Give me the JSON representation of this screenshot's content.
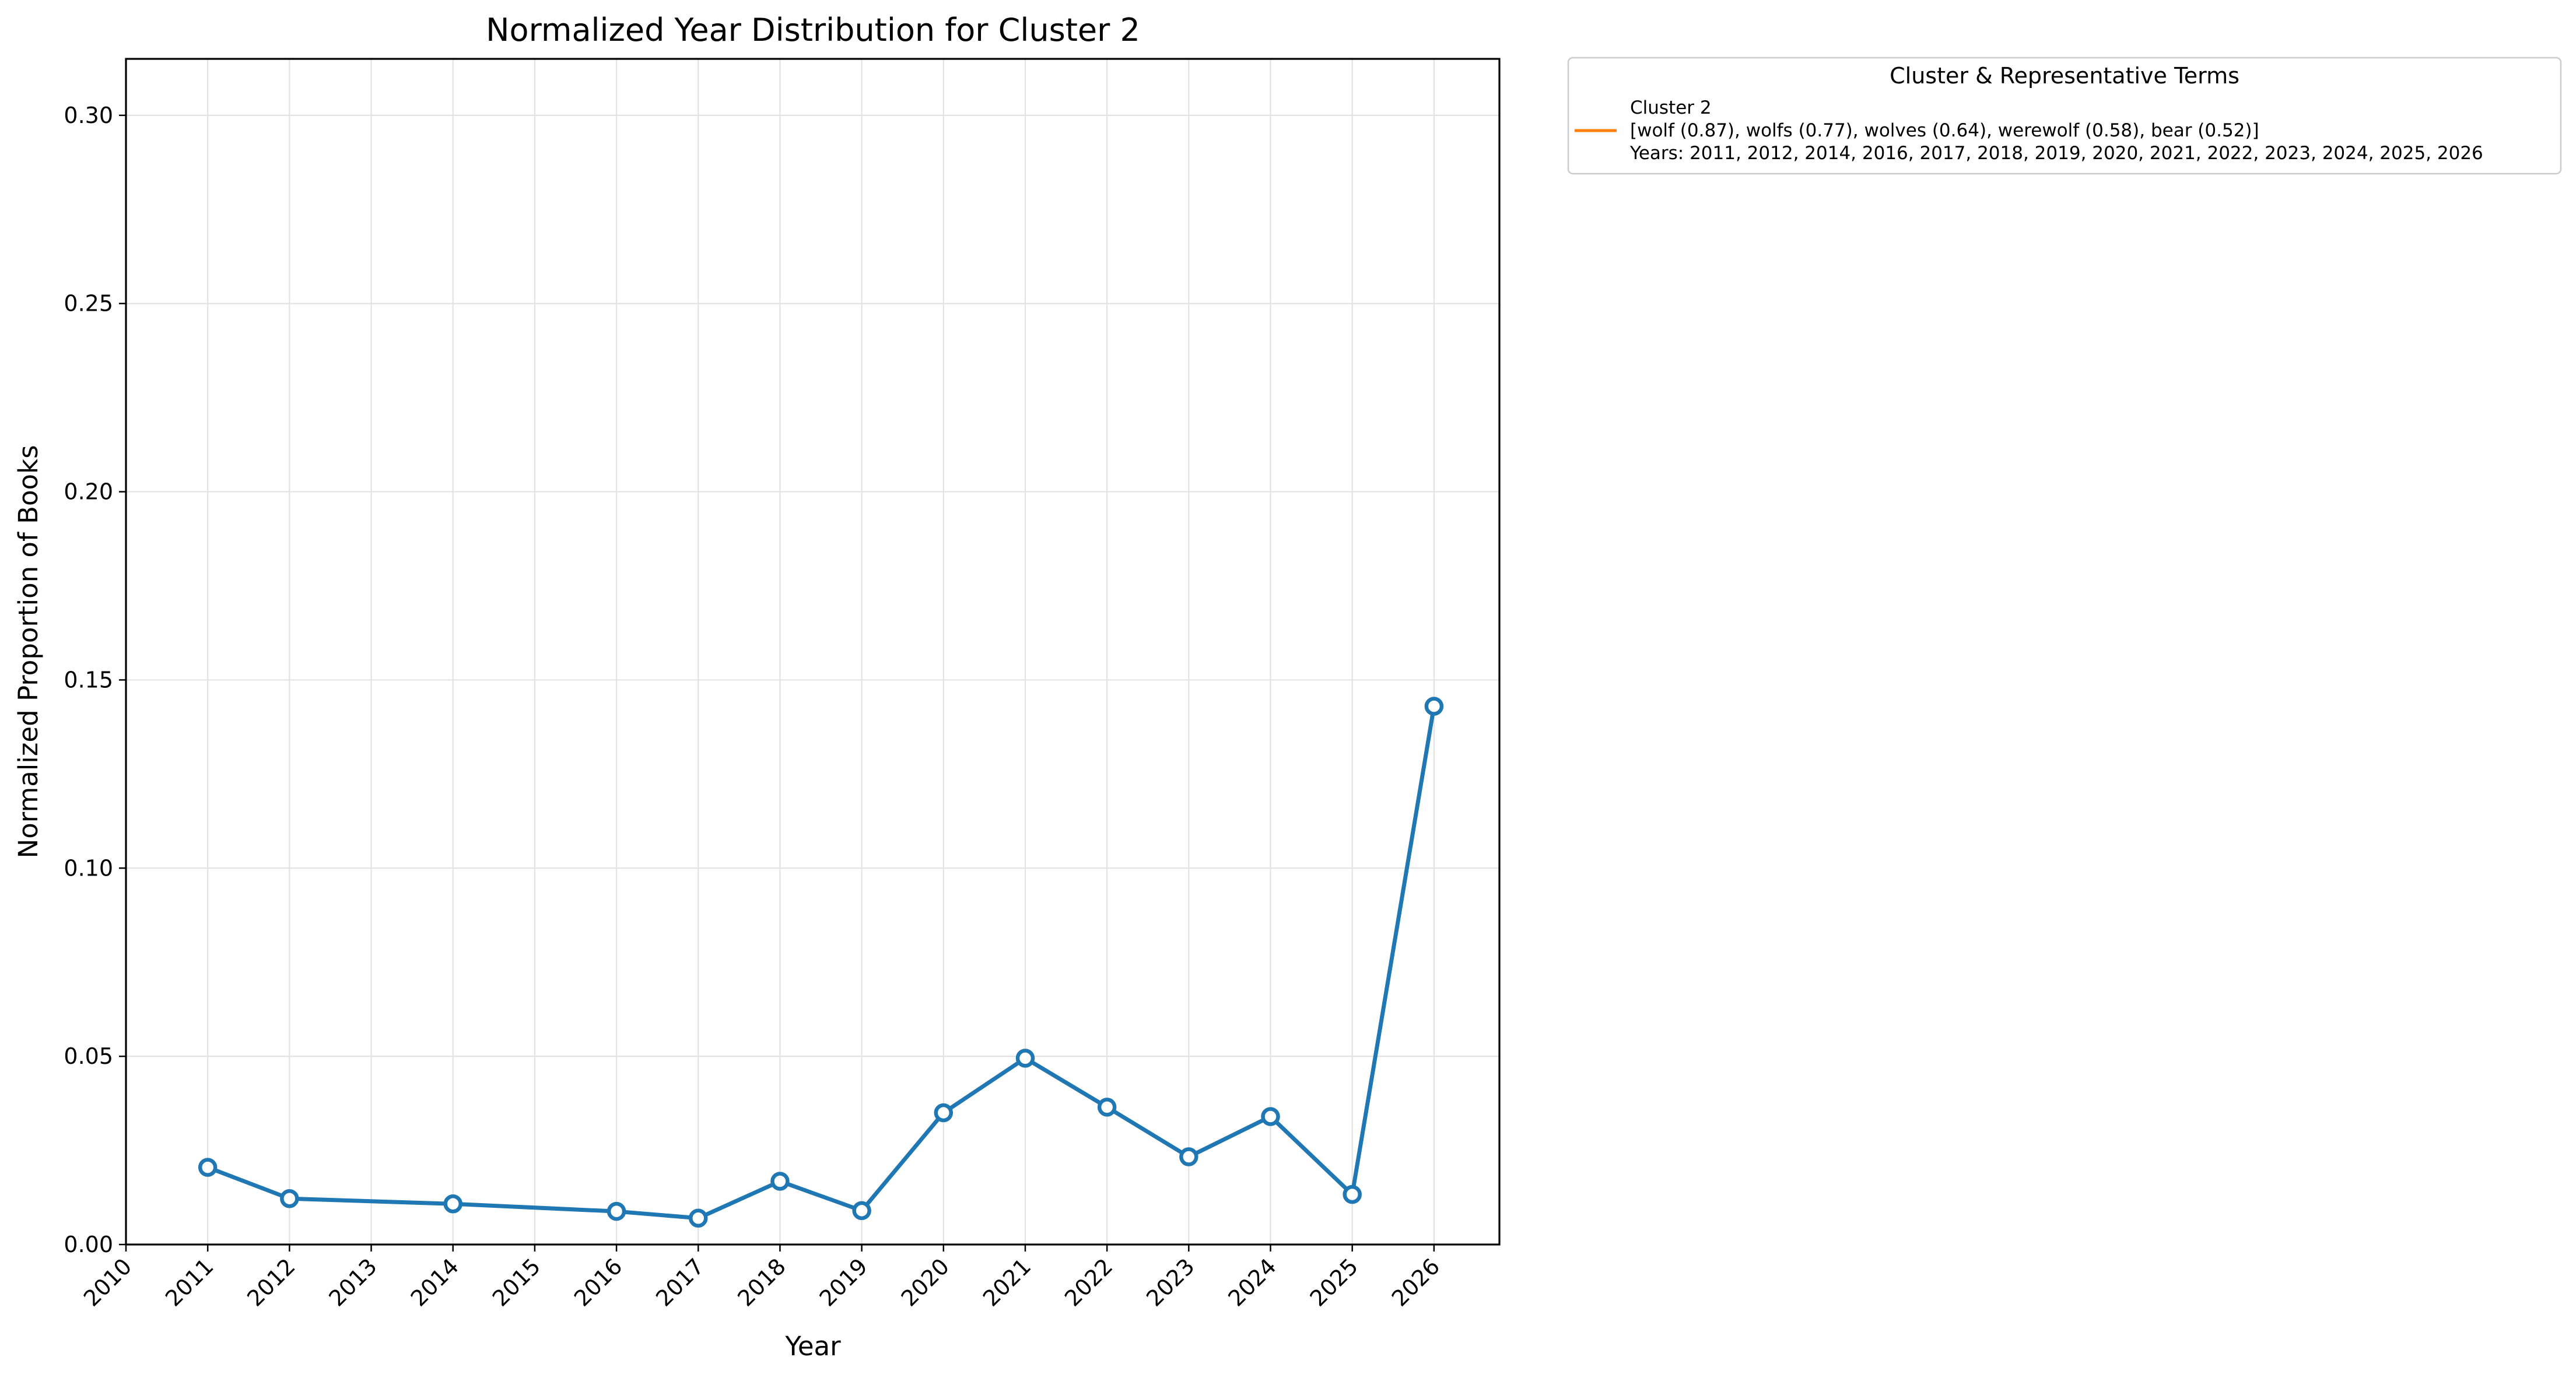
{
  "chart_data": {
    "type": "line",
    "title": "Normalized Year Distribution for Cluster 2",
    "xlabel": "Year",
    "ylabel": "Normalized Proportion of Books",
    "xlim": [
      2010,
      2026.8
    ],
    "ylim": [
      0,
      0.315
    ],
    "x_ticks": [
      "2010",
      "2011",
      "2012",
      "2013",
      "2014",
      "2015",
      "2016",
      "2017",
      "2018",
      "2019",
      "2020",
      "2021",
      "2022",
      "2023",
      "2024",
      "2025",
      "2026"
    ],
    "y_ticks": [
      "0.00",
      "0.05",
      "0.10",
      "0.15",
      "0.20",
      "0.25",
      "0.30"
    ],
    "grid": true,
    "series": [
      {
        "color": "#1f77b4",
        "x": [
          2011,
          2012,
          2014,
          2016,
          2017,
          2018,
          2019,
          2020,
          2021,
          2022,
          2023,
          2024,
          2025,
          2026
        ],
        "y": [
          0.0205,
          0.0122,
          0.0108,
          0.0088,
          0.007,
          0.0168,
          0.009,
          0.035,
          0.0495,
          0.0365,
          0.0233,
          0.034,
          0.0133,
          0.143
        ]
      }
    ],
    "legend": {
      "placement": "outside-top-right",
      "title": "Cluster & Representative Terms",
      "line_color": "#ff7f0e",
      "entry_lines": [
        "Cluster 2",
        "[wolf (0.87), wolfs (0.77), wolves (0.64), werewolf (0.58), bear (0.52)]",
        "Years: 2011, 2012, 2014, 2016, 2017, 2018, 2019, 2020, 2021, 2022, 2023, 2024, 2025, 2026"
      ]
    }
  }
}
